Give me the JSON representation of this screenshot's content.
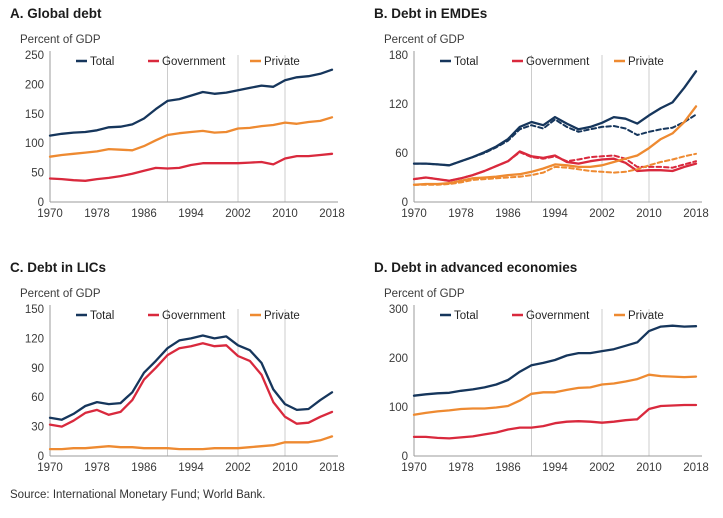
{
  "figure": {
    "unit_label": "Percent of GDP",
    "source_note": "Source: International Monetary Fund; World Bank.",
    "legend_labels": [
      "Total",
      "Government",
      "Private"
    ],
    "colors": {
      "total": "#16365c",
      "government": "#d9293d",
      "private": "#ee8a31",
      "gridline": "#cccccc",
      "axis": "#9b9b9b",
      "tick_text": "#3a3a3a",
      "title_text": "#1b1b1b"
    }
  },
  "chart_data": [
    {
      "id": "A",
      "type": "line",
      "title": "A. Global debt",
      "ylabel": "Percent of GDP",
      "ylim": [
        0,
        250
      ],
      "yticks": [
        0,
        50,
        100,
        150,
        200,
        250
      ],
      "xticks": [
        1970,
        1978,
        1986,
        1994,
        2002,
        2010,
        2018
      ],
      "gridlines_x": [
        1990,
        2002,
        2010
      ],
      "x": [
        1970,
        1972,
        1974,
        1976,
        1978,
        1980,
        1982,
        1984,
        1986,
        1988,
        1990,
        1992,
        1994,
        1996,
        1998,
        2000,
        2002,
        2004,
        2006,
        2008,
        2010,
        2012,
        2014,
        2016,
        2018
      ],
      "series": [
        {
          "name": "Total",
          "color": "total",
          "dashed": false,
          "in_legend": true,
          "values": [
            113,
            116,
            118,
            119,
            122,
            127,
            128,
            132,
            142,
            158,
            172,
            175,
            181,
            187,
            184,
            186,
            190,
            194,
            198,
            196,
            207,
            212,
            214,
            218,
            225
          ]
        },
        {
          "name": "Government",
          "color": "government",
          "dashed": false,
          "in_legend": true,
          "values": [
            40,
            39,
            37,
            36,
            39,
            41,
            44,
            48,
            53,
            58,
            57,
            58,
            63,
            66,
            66,
            66,
            66,
            67,
            68,
            64,
            74,
            78,
            78,
            80,
            82
          ]
        },
        {
          "name": "Private",
          "color": "private",
          "dashed": false,
          "in_legend": true,
          "values": [
            77,
            80,
            82,
            84,
            86,
            90,
            89,
            88,
            95,
            105,
            114,
            117,
            119,
            121,
            118,
            119,
            125,
            126,
            129,
            131,
            135,
            133,
            136,
            138,
            144
          ]
        }
      ]
    },
    {
      "id": "B",
      "type": "line",
      "title": "B. Debt in EMDEs",
      "ylabel": "Percent of GDP",
      "ylim": [
        0,
        180
      ],
      "yticks": [
        0,
        60,
        120,
        180
      ],
      "xticks": [
        1970,
        1978,
        1986,
        1994,
        2002,
        2010,
        2018
      ],
      "gridlines_x": [
        1990,
        2002,
        2010
      ],
      "x": [
        1970,
        1972,
        1974,
        1976,
        1978,
        1980,
        1982,
        1984,
        1986,
        1988,
        1990,
        1992,
        1994,
        1996,
        1998,
        2000,
        2002,
        2004,
        2006,
        2008,
        2010,
        2012,
        2014,
        2016,
        2018
      ],
      "series": [
        {
          "name": "Total",
          "color": "total",
          "dashed": false,
          "in_legend": true,
          "values": [
            47,
            47,
            46,
            45,
            50,
            55,
            61,
            68,
            77,
            92,
            98,
            94,
            104,
            96,
            89,
            92,
            97,
            104,
            102,
            96,
            106,
            115,
            122,
            140,
            160
          ]
        },
        {
          "name": "Total excluding China",
          "color": "total",
          "dashed": true,
          "in_legend": false,
          "values": [
            47,
            47,
            46,
            45,
            50,
            55,
            60,
            67,
            75,
            89,
            94,
            90,
            101,
            92,
            86,
            89,
            92,
            93,
            90,
            82,
            86,
            89,
            91,
            98,
            107
          ]
        },
        {
          "name": "Government",
          "color": "government",
          "dashed": false,
          "in_legend": true,
          "values": [
            28,
            30,
            28,
            26,
            29,
            33,
            38,
            44,
            50,
            62,
            56,
            54,
            57,
            49,
            47,
            50,
            52,
            53,
            48,
            38,
            39,
            39,
            38,
            43,
            47
          ]
        },
        {
          "name": "Government excluding China",
          "color": "government",
          "dashed": true,
          "in_legend": false,
          "values": [
            28,
            30,
            28,
            26,
            29,
            33,
            38,
            44,
            50,
            61,
            55,
            53,
            56,
            50,
            52,
            55,
            56,
            57,
            53,
            43,
            43,
            43,
            42,
            46,
            50
          ]
        },
        {
          "name": "Private",
          "color": "private",
          "dashed": false,
          "in_legend": true,
          "values": [
            21,
            22,
            22,
            23,
            26,
            29,
            30,
            31,
            33,
            34,
            37,
            41,
            46,
            45,
            43,
            43,
            45,
            49,
            53,
            57,
            66,
            77,
            84,
            98,
            117
          ]
        },
        {
          "name": "Private excluding China",
          "color": "private",
          "dashed": true,
          "in_legend": false,
          "values": [
            21,
            21,
            21,
            22,
            24,
            27,
            28,
            29,
            30,
            31,
            33,
            36,
            43,
            42,
            40,
            38,
            37,
            36,
            37,
            40,
            45,
            49,
            52,
            56,
            59
          ]
        }
      ]
    },
    {
      "id": "C",
      "type": "line",
      "title": "C. Debt in LICs",
      "ylabel": "Percent of GDP",
      "ylim": [
        0,
        150
      ],
      "yticks": [
        0,
        30,
        60,
        90,
        120,
        150
      ],
      "xticks": [
        1970,
        1978,
        1986,
        1994,
        2002,
        2010,
        2018
      ],
      "gridlines_x": [
        1990,
        2002,
        2010
      ],
      "x": [
        1970,
        1972,
        1974,
        1976,
        1978,
        1980,
        1982,
        1984,
        1986,
        1988,
        1990,
        1992,
        1994,
        1996,
        1998,
        2000,
        2002,
        2004,
        2006,
        2008,
        2010,
        2012,
        2014,
        2016,
        2018
      ],
      "series": [
        {
          "name": "Total",
          "color": "total",
          "dashed": false,
          "in_legend": true,
          "values": [
            39,
            37,
            43,
            51,
            55,
            53,
            54,
            65,
            85,
            97,
            110,
            118,
            120,
            123,
            120,
            122,
            113,
            108,
            95,
            68,
            53,
            47,
            48,
            57,
            65
          ]
        },
        {
          "name": "Government",
          "color": "government",
          "dashed": false,
          "in_legend": true,
          "values": [
            32,
            30,
            36,
            44,
            47,
            42,
            45,
            57,
            78,
            90,
            103,
            110,
            112,
            115,
            112,
            113,
            102,
            97,
            83,
            55,
            40,
            33,
            34,
            40,
            45
          ]
        },
        {
          "name": "Private",
          "color": "private",
          "dashed": false,
          "in_legend": true,
          "values": [
            7,
            7,
            8,
            8,
            9,
            10,
            9,
            9,
            8,
            8,
            8,
            7,
            7,
            7,
            8,
            8,
            8,
            9,
            10,
            11,
            14,
            14,
            14,
            16,
            20
          ]
        }
      ]
    },
    {
      "id": "D",
      "type": "line",
      "title": "D. Debt in advanced economies",
      "ylabel": "Percent of GDP",
      "ylim": [
        0,
        300
      ],
      "yticks": [
        0,
        100,
        200,
        300
      ],
      "xticks": [
        1970,
        1978,
        1986,
        1994,
        2002,
        2010,
        2018
      ],
      "gridlines_x": [
        1990,
        2002,
        2010
      ],
      "x": [
        1970,
        1972,
        1974,
        1976,
        1978,
        1980,
        1982,
        1984,
        1986,
        1988,
        1990,
        1992,
        1994,
        1996,
        1998,
        2000,
        2002,
        2004,
        2006,
        2008,
        2010,
        2012,
        2014,
        2016,
        2018
      ],
      "series": [
        {
          "name": "Total",
          "color": "total",
          "dashed": false,
          "in_legend": true,
          "values": [
            123,
            126,
            128,
            129,
            133,
            136,
            140,
            146,
            155,
            172,
            185,
            190,
            196,
            205,
            210,
            210,
            214,
            218,
            225,
            232,
            255,
            264,
            266,
            264,
            265
          ]
        },
        {
          "name": "Government",
          "color": "government",
          "dashed": false,
          "in_legend": true,
          "values": [
            39,
            39,
            37,
            36,
            38,
            40,
            44,
            48,
            54,
            58,
            58,
            61,
            67,
            70,
            71,
            70,
            68,
            70,
            73,
            75,
            96,
            102,
            103,
            104,
            104
          ]
        },
        {
          "name": "Private",
          "color": "private",
          "dashed": false,
          "in_legend": true,
          "values": [
            84,
            88,
            91,
            93,
            96,
            97,
            97,
            99,
            102,
            113,
            127,
            130,
            130,
            135,
            139,
            140,
            146,
            148,
            152,
            157,
            166,
            163,
            162,
            161,
            162
          ]
        }
      ]
    }
  ]
}
